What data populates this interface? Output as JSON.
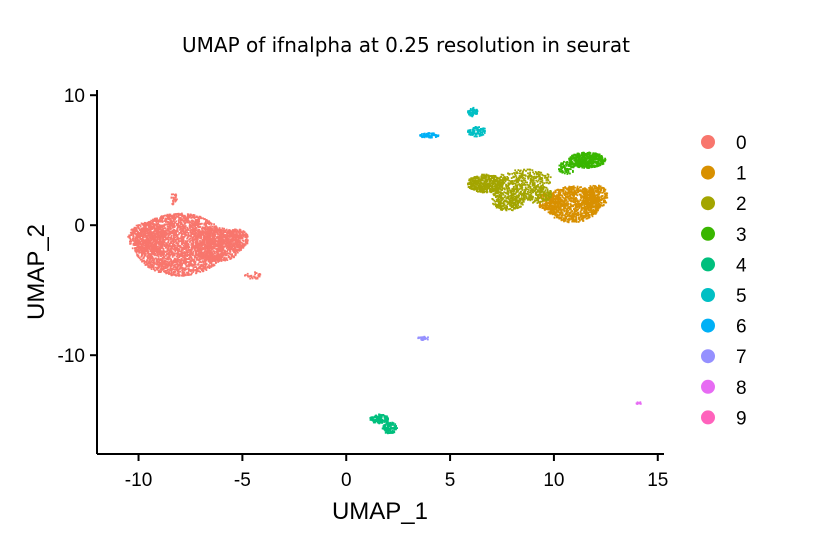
{
  "chart_data": {
    "type": "scatter",
    "title": "UMAP of ifnalpha at 0.25 resolution in seurat",
    "xlabel": "UMAP_1",
    "ylabel": "UMAP_2",
    "xlim": [
      -12,
      15.3
    ],
    "ylim": [
      -17.6,
      10.4
    ],
    "xticks": [
      -10,
      -5,
      0,
      5,
      10,
      15
    ],
    "yticks": [
      10,
      0,
      -10
    ],
    "xtick_labels": [
      "-10",
      "-5",
      "0",
      "5",
      "10",
      "15"
    ],
    "ytick_labels": [
      "10",
      "0",
      "-10"
    ],
    "grid": false,
    "legend_position": "right",
    "clusters": [
      {
        "name": "0",
        "color": "#F8766D",
        "blobs": [
          {
            "cx": -8.0,
            "cy": -1.5,
            "rx": 2.2,
            "ry": 2.4,
            "n": 2600
          },
          {
            "cx": -6.2,
            "cy": -1.5,
            "rx": 1.2,
            "ry": 1.3,
            "n": 700
          },
          {
            "cx": -5.3,
            "cy": -1.1,
            "rx": 0.6,
            "ry": 0.8,
            "n": 250
          },
          {
            "cx": -9.6,
            "cy": -1.0,
            "rx": 0.9,
            "ry": 1.2,
            "n": 400
          },
          {
            "cx": -8.3,
            "cy": 2.0,
            "rx": 0.15,
            "ry": 0.5,
            "n": 25
          },
          {
            "cx": -4.5,
            "cy": -3.9,
            "rx": 0.4,
            "ry": 0.3,
            "n": 30
          }
        ]
      },
      {
        "name": "1",
        "color": "#D89000",
        "blobs": [
          {
            "cx": 10.9,
            "cy": 1.6,
            "rx": 1.3,
            "ry": 1.4,
            "n": 900
          },
          {
            "cx": 12.0,
            "cy": 2.2,
            "rx": 0.6,
            "ry": 0.9,
            "n": 300
          },
          {
            "cx": 9.8,
            "cy": 1.8,
            "rx": 0.6,
            "ry": 0.7,
            "n": 200
          }
        ]
      },
      {
        "name": "2",
        "color": "#A3A500",
        "blobs": [
          {
            "cx": 6.7,
            "cy": 3.2,
            "rx": 0.9,
            "ry": 0.7,
            "n": 450
          },
          {
            "cx": 7.8,
            "cy": 2.0,
            "rx": 0.8,
            "ry": 0.9,
            "n": 350
          },
          {
            "cx": 8.6,
            "cy": 3.5,
            "rx": 1.3,
            "ry": 0.8,
            "n": 300
          },
          {
            "cx": 9.2,
            "cy": 2.4,
            "rx": 0.7,
            "ry": 0.7,
            "n": 180
          }
        ]
      },
      {
        "name": "3",
        "color": "#39B600",
        "blobs": [
          {
            "cx": 11.6,
            "cy": 5.0,
            "rx": 0.9,
            "ry": 0.6,
            "n": 500
          },
          {
            "cx": 10.6,
            "cy": 4.4,
            "rx": 0.4,
            "ry": 0.5,
            "n": 80
          }
        ]
      },
      {
        "name": "4",
        "color": "#00BF7D",
        "blobs": [
          {
            "cx": 1.6,
            "cy": -14.9,
            "rx": 0.45,
            "ry": 0.35,
            "n": 120
          },
          {
            "cx": 2.1,
            "cy": -15.6,
            "rx": 0.35,
            "ry": 0.45,
            "n": 120
          }
        ]
      },
      {
        "name": "5",
        "color": "#00BFC4",
        "blobs": [
          {
            "cx": 6.1,
            "cy": 8.7,
            "rx": 0.25,
            "ry": 0.35,
            "n": 60
          },
          {
            "cx": 6.3,
            "cy": 7.2,
            "rx": 0.45,
            "ry": 0.4,
            "n": 100
          }
        ]
      },
      {
        "name": "6",
        "color": "#00B0F6",
        "blobs": [
          {
            "cx": 4.0,
            "cy": 6.9,
            "rx": 0.45,
            "ry": 0.2,
            "n": 80
          }
        ]
      },
      {
        "name": "7",
        "color": "#9590FF",
        "blobs": [
          {
            "cx": 3.7,
            "cy": -8.7,
            "rx": 0.3,
            "ry": 0.15,
            "n": 25
          }
        ]
      },
      {
        "name": "8",
        "color": "#E76BF3",
        "blobs": [
          {
            "cx": 14.1,
            "cy": -13.7,
            "rx": 0.12,
            "ry": 0.1,
            "n": 12
          }
        ]
      },
      {
        "name": "9",
        "color": "#FF62BC",
        "blobs": []
      }
    ]
  }
}
